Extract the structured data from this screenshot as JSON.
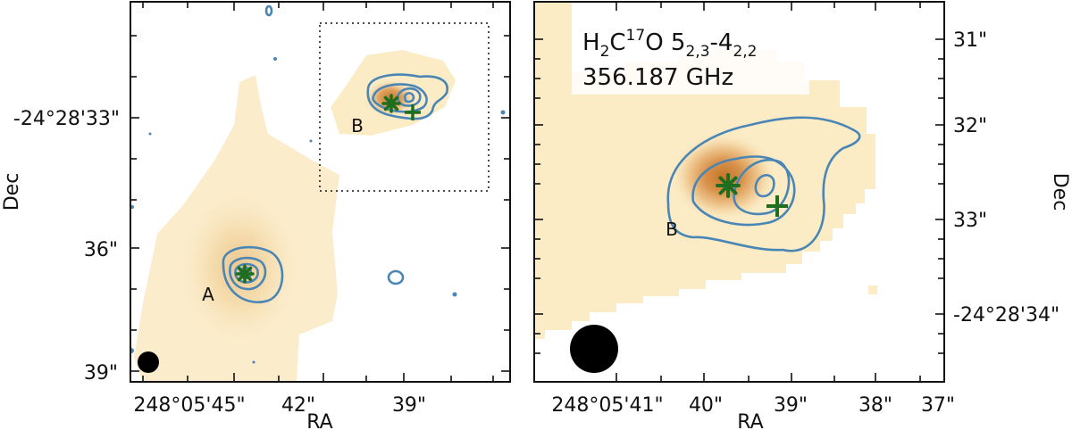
{
  "left_panel": {
    "x_tick_labels": [
      "248°05'45\"",
      "42\"",
      "39\""
    ],
    "y_tick_labels": [
      "-24°28'33\"",
      "36\"",
      "39\""
    ],
    "xlabel": "RA",
    "ylabel": "Dec",
    "source_labels": [
      "A",
      "B"
    ]
  },
  "right_panel": {
    "x_tick_labels": [
      "248°05'41\"",
      "40\"",
      "39\"",
      "38\"",
      "37\""
    ],
    "y_tick_labels": [
      "31\"",
      "32\"",
      "33\"",
      "-24°28'34\""
    ],
    "xlabel": "RA",
    "ylabel": "Dec",
    "source_label": "B",
    "molecule": {
      "base1": "H",
      "sub1": "2",
      "base2": "C",
      "sup1": "17",
      "base3": "O 5",
      "sub2": "2,3",
      "dash": "-4",
      "sub3": "2,2"
    },
    "frequency": "356.187 GHz"
  },
  "colors": {
    "contour": "#4a86b5",
    "marker": "#1f6e1f",
    "emission_core": "#c4762a",
    "emission_halo": "#fbecc6"
  },
  "marker_types": [
    "star",
    "plus"
  ]
}
